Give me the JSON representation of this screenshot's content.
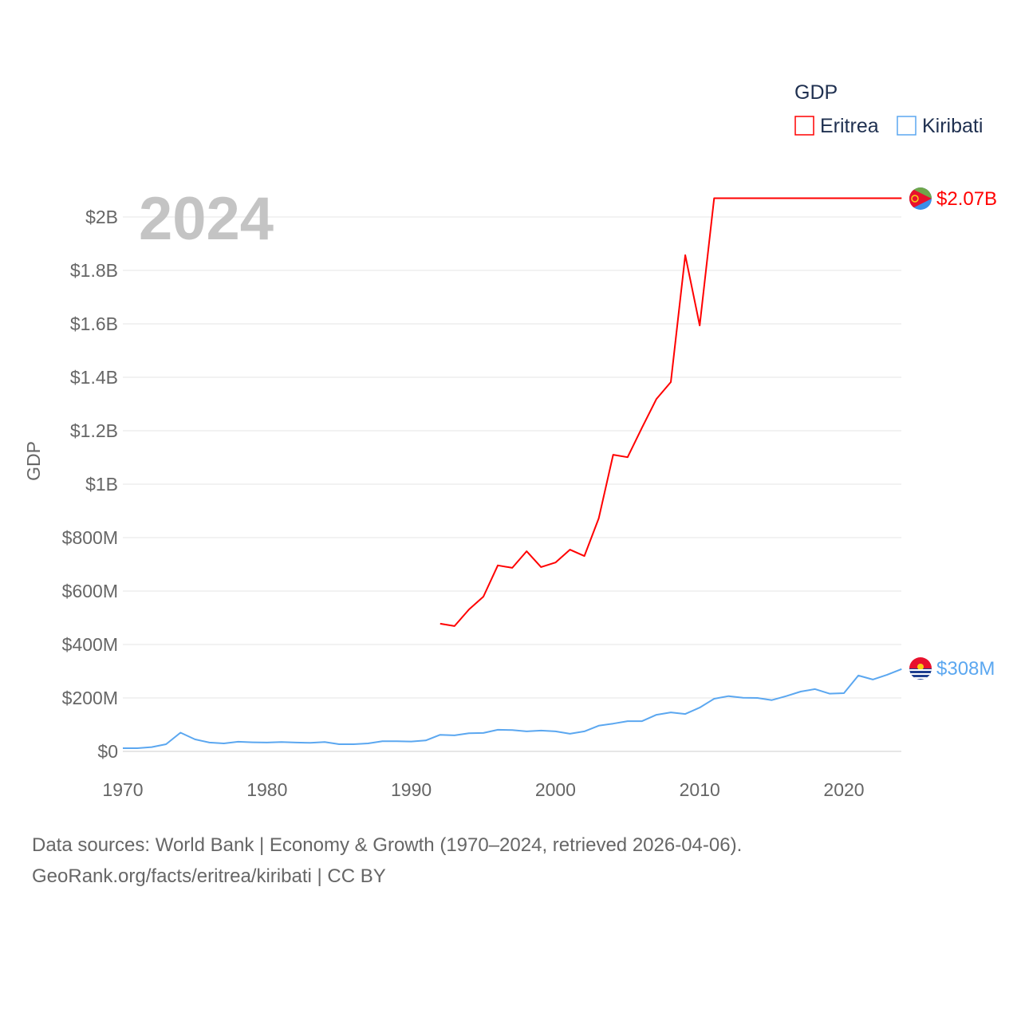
{
  "chart_data": {
    "type": "line",
    "title": "GDP",
    "legend_title": "GDP",
    "legend_position": "top-right",
    "year_label": "2024",
    "ylabel": "GDP",
    "xlabel": "",
    "xlim": [
      1970,
      2024
    ],
    "ylim": [
      0,
      2100000000
    ],
    "grid": true,
    "x_ticks": [
      1970,
      1980,
      1990,
      2000,
      2010,
      2020
    ],
    "y_ticks": [
      {
        "value": 0,
        "label": "$0"
      },
      {
        "value": 200000000,
        "label": "$200M"
      },
      {
        "value": 400000000,
        "label": "$400M"
      },
      {
        "value": 600000000,
        "label": "$600M"
      },
      {
        "value": 800000000,
        "label": "$800M"
      },
      {
        "value": 1000000000,
        "label": "$1B"
      },
      {
        "value": 1200000000,
        "label": "$1.2B"
      },
      {
        "value": 1400000000,
        "label": "$1.4B"
      },
      {
        "value": 1600000000,
        "label": "$1.6B"
      },
      {
        "value": 1800000000,
        "label": "$1.8B"
      },
      {
        "value": 2000000000,
        "label": "$2B"
      }
    ],
    "series": [
      {
        "name": "Eritrea",
        "color": "#ff0000",
        "end_label": "$2.07B",
        "flag": "eritrea-flag",
        "x": [
          1992,
          1993,
          1994,
          1995,
          1996,
          1997,
          1998,
          1999,
          2000,
          2001,
          2002,
          2003,
          2004,
          2005,
          2006,
          2007,
          2008,
          2009,
          2010,
          2011,
          2024
        ],
        "values_millions": [
          478,
          469,
          531,
          579,
          696,
          687,
          749,
          690,
          707,
          755,
          731,
          872,
          1110,
          1101,
          1212,
          1319,
          1382,
          1857,
          1594,
          2070,
          2070
        ]
      },
      {
        "name": "Kiribati",
        "color": "#5ba7f0",
        "end_label": "$308M",
        "flag": "kiribati-flag",
        "x": [
          1970,
          1971,
          1972,
          1973,
          1974,
          1975,
          1976,
          1977,
          1978,
          1979,
          1980,
          1981,
          1982,
          1983,
          1984,
          1985,
          1986,
          1987,
          1988,
          1989,
          1990,
          1991,
          1992,
          1993,
          1994,
          1995,
          1996,
          1997,
          1998,
          1999,
          2000,
          2001,
          2002,
          2003,
          2004,
          2005,
          2006,
          2007,
          2008,
          2009,
          2010,
          2011,
          2012,
          2013,
          2014,
          2015,
          2016,
          2017,
          2018,
          2019,
          2020,
          2021,
          2022,
          2023,
          2024
        ],
        "values_millions": [
          12,
          12,
          16,
          27,
          70,
          45,
          33,
          30,
          36,
          34,
          33,
          35,
          33,
          32,
          35,
          27,
          27,
          30,
          38,
          38,
          37,
          41,
          62,
          60,
          68,
          69,
          81,
          80,
          75,
          78,
          75,
          66,
          75,
          96,
          104,
          113,
          113,
          137,
          146,
          140,
          164,
          197,
          207,
          201,
          200,
          192,
          207,
          224,
          233,
          216,
          218,
          284,
          269,
          287,
          308
        ]
      }
    ]
  },
  "footer": {
    "line1": "Data sources: World Bank | Economy & Growth (1970–2024, retrieved 2026-04-06).",
    "line2": "GeoRank.org/facts/eritrea/kiribati | CC BY"
  }
}
